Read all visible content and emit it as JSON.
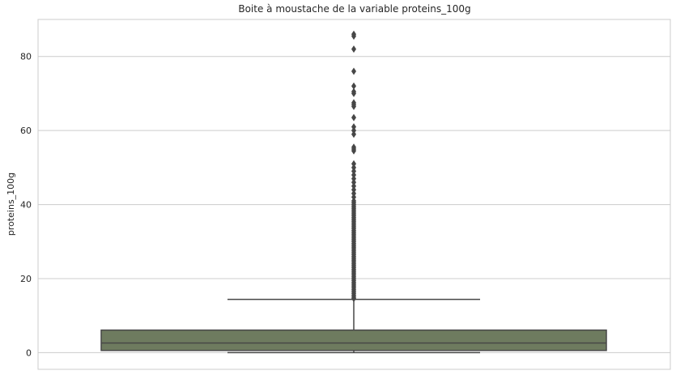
{
  "chart_data": {
    "type": "box",
    "title": "Boite à moustache de la variable proteins_100g",
    "xlabel": "",
    "ylabel": "proteins_100g",
    "ylim": [
      -4.5,
      90
    ],
    "yticks": [
      0,
      20,
      40,
      60,
      80
    ],
    "ytick_labels": [
      "0",
      "20",
      "40",
      "60",
      "80"
    ],
    "grid": "horizontal",
    "box": {
      "min": 0,
      "q1": 0.6,
      "median": 2.6,
      "q3": 6.1,
      "whisker_high": 14.4
    },
    "outliers": [
      86,
      85.5,
      82,
      76,
      72,
      70.5,
      70,
      67.5,
      67,
      66.5,
      63.5,
      61,
      60,
      59,
      55.5,
      55,
      54.5,
      51,
      50,
      49,
      48,
      47,
      46,
      45,
      44,
      43,
      42,
      41,
      40.5,
      40,
      39.5,
      39,
      38.5,
      38,
      37.5,
      37,
      36.5,
      36,
      35.5,
      35,
      34.5,
      34,
      33.5,
      33,
      32.5,
      32,
      31.5,
      31,
      30.5,
      30,
      29.5,
      29,
      28.5,
      28,
      27.5,
      27,
      26.5,
      26,
      25.5,
      25,
      24.5,
      24,
      23.5,
      23,
      22.5,
      22,
      21.5,
      21,
      20.5,
      20,
      19.5,
      19,
      18.5,
      18,
      17.5,
      17,
      16.5,
      16,
      15.5,
      15,
      14.6
    ],
    "colors": {
      "box_fill": "#6e7b5f",
      "line": "#474747",
      "grid": "#cccccc",
      "spine": "#cccccc"
    }
  }
}
